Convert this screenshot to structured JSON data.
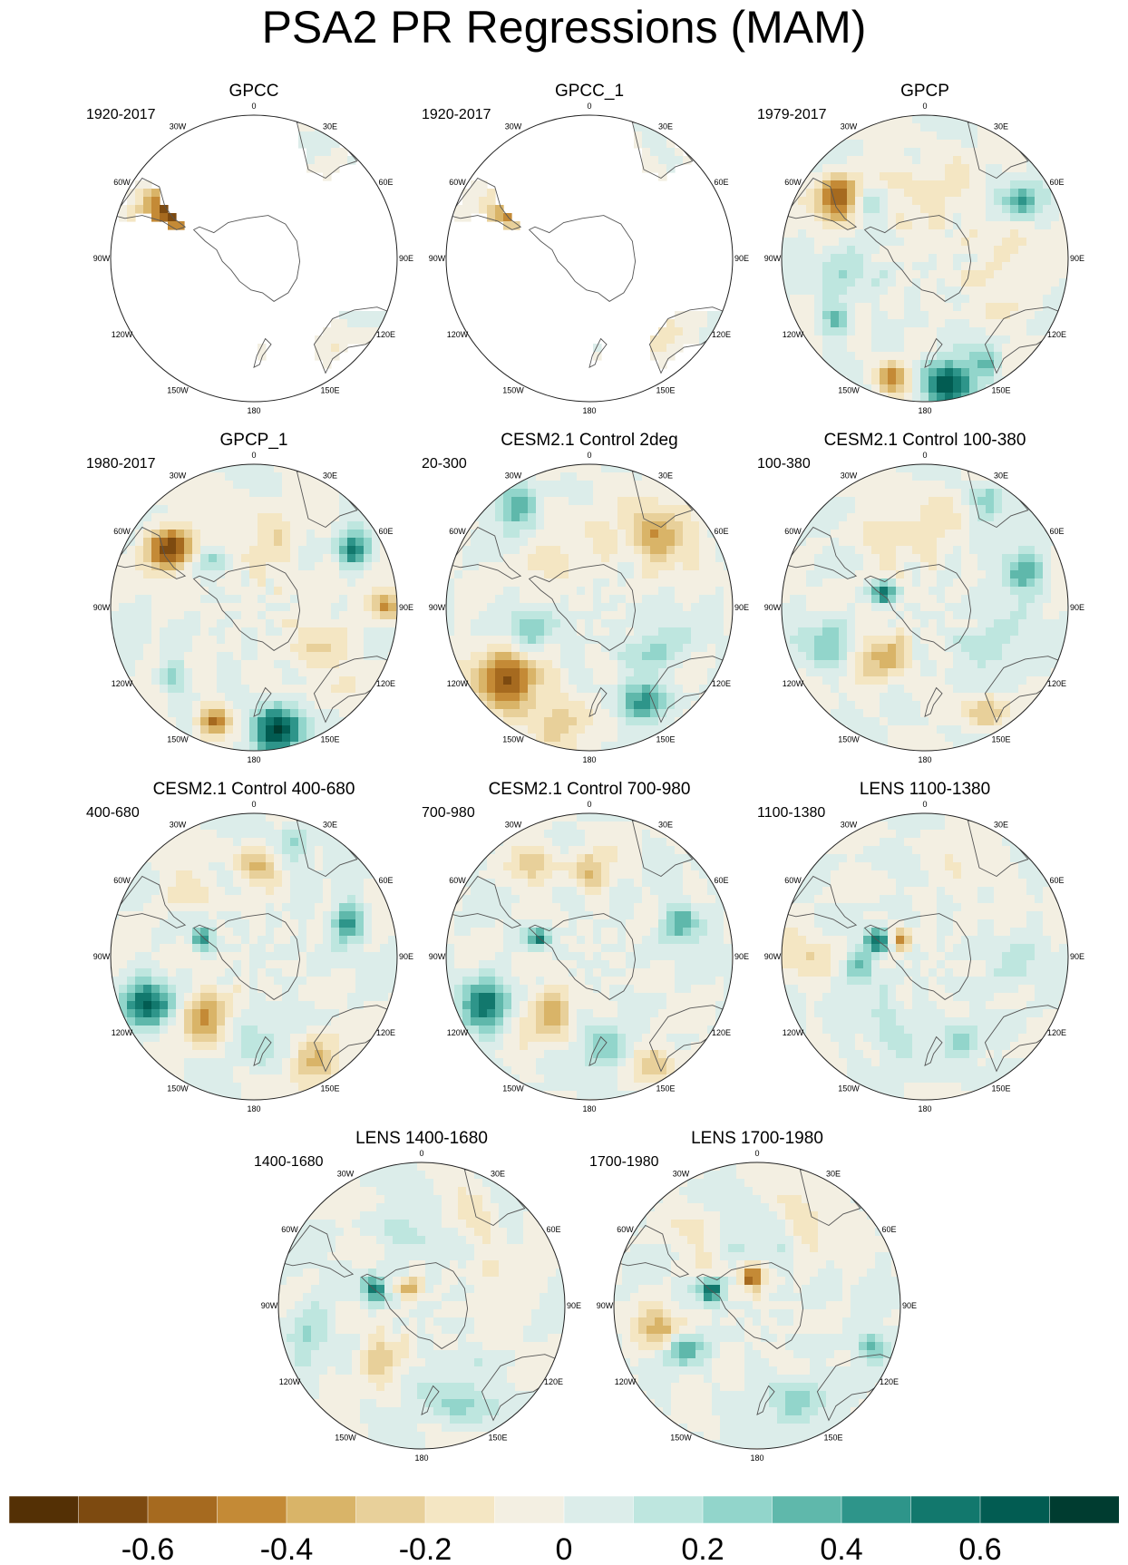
{
  "title": "PSA2 PR Regressions (MAM)",
  "longitude_labels": [
    "0",
    "30E",
    "60E",
    "90E",
    "120E",
    "150E",
    "180",
    "150W",
    "120W",
    "90W",
    "60W",
    "30W"
  ],
  "panels": [
    {
      "title": "GPCC",
      "period": "1920-2017",
      "coverage": "land",
      "field": 0
    },
    {
      "title": "GPCC_1",
      "period": "1920-2017",
      "coverage": "land",
      "field": 1
    },
    {
      "title": "GPCP",
      "period": "1979-2017",
      "coverage": "full",
      "field": 2
    },
    {
      "title": "GPCP_1",
      "period": "1980-2017",
      "coverage": "full",
      "field": 3
    },
    {
      "title": "CESM2.1 Control 2deg",
      "period": "20-300",
      "coverage": "full",
      "field": 4
    },
    {
      "title": "CESM2.1 Control 100-380",
      "period": "100-380",
      "coverage": "full",
      "field": 5
    },
    {
      "title": "CESM2.1 Control 400-680",
      "period": "400-680",
      "coverage": "full",
      "field": 6
    },
    {
      "title": "CESM2.1 Control 700-980",
      "period": "700-980",
      "coverage": "full",
      "field": 7
    },
    {
      "title": "LENS 1100-1380",
      "period": "1100-1380",
      "coverage": "full",
      "field": 8
    },
    {
      "title": "LENS 1400-1680",
      "period": "1400-1680",
      "coverage": "full",
      "field": 9
    },
    {
      "title": "LENS 1700-1980",
      "period": "1700-1980",
      "coverage": "full",
      "field": 10
    }
  ],
  "colorbar": {
    "tick_labels": [
      "-0.6",
      "-0.4",
      "-0.2",
      "0",
      "0.2",
      "0.4",
      "0.6"
    ],
    "colors": [
      "#543005",
      "#7d4a10",
      "#a66a1f",
      "#c48a36",
      "#d9b468",
      "#e8d09a",
      "#f4e6c3",
      "#f3efe2",
      "#dcedea",
      "#bee6df",
      "#92d5cb",
      "#5fb8ab",
      "#2e958a",
      "#12786d",
      "#025c52",
      "#003c30"
    ]
  },
  "chart_data": {
    "type": "heatmap",
    "title": "PSA2 PR Regressions (MAM)",
    "projection": "south polar stereographic",
    "color_scale": {
      "min": -0.8,
      "max": 0.8,
      "step": 0.1,
      "labels": [
        -0.6,
        -0.4,
        -0.2,
        0,
        0.2,
        0.4,
        0.6
      ]
    },
    "panels": [
      {
        "name": "GPCC",
        "period": "1920-2017"
      },
      {
        "name": "GPCC_1",
        "period": "1920-2017"
      },
      {
        "name": "GPCP",
        "period": "1979-2017"
      },
      {
        "name": "GPCP_1",
        "period": "1980-2017"
      },
      {
        "name": "CESM2.1 Control 2deg",
        "period": "20-300"
      },
      {
        "name": "CESM2.1 Control 100-380",
        "period": "100-380"
      },
      {
        "name": "CESM2.1 Control 400-680",
        "period": "400-680"
      },
      {
        "name": "CESM2.1 Control 700-980",
        "period": "700-980"
      },
      {
        "name": "LENS 1100-1380",
        "period": "1100-1380"
      },
      {
        "name": "LENS 1400-1680",
        "period": "1400-1680"
      },
      {
        "name": "LENS 1700-1980",
        "period": "1700-1980"
      }
    ]
  }
}
